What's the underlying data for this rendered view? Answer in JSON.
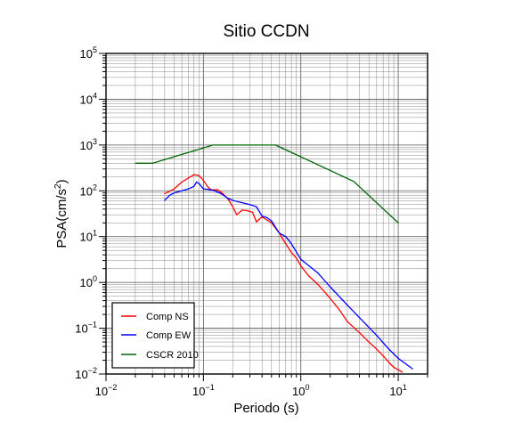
{
  "chart_data": {
    "type": "line",
    "title": "Sitio CCDN",
    "xlabel": "Periodo (s)",
    "ylabel": {
      "prefix": "PSA(cm/s",
      "sup": "2",
      "suffix": ")"
    },
    "x_scale": "log",
    "y_scale": "log",
    "xlim": [
      0.01,
      20
    ],
    "ylim": [
      0.01,
      100000
    ],
    "grid": true,
    "legend_placement": "bottom-left",
    "x_ticks": [
      {
        "value": 0.01,
        "base": "10",
        "exp": "−2"
      },
      {
        "value": 0.1,
        "base": "10",
        "exp": "−1"
      },
      {
        "value": 1,
        "base": "10",
        "exp": "0"
      },
      {
        "value": 10,
        "base": "10",
        "exp": "1"
      }
    ],
    "y_ticks": [
      {
        "value": 0.01,
        "base": "10",
        "exp": "−2"
      },
      {
        "value": 0.1,
        "base": "10",
        "exp": "−1"
      },
      {
        "value": 1,
        "base": "10",
        "exp": "0"
      },
      {
        "value": 10,
        "base": "10",
        "exp": "1"
      },
      {
        "value": 100,
        "base": "10",
        "exp": "2"
      },
      {
        "value": 1000,
        "base": "10",
        "exp": "3"
      },
      {
        "value": 10000,
        "base": "10",
        "exp": "4"
      },
      {
        "value": 100000,
        "base": "10",
        "exp": "5"
      }
    ],
    "series": [
      {
        "name": "Comp NS",
        "color": "#ff0000",
        "points": [
          [
            0.04,
            87
          ],
          [
            0.05,
            110
          ],
          [
            0.06,
            155
          ],
          [
            0.07,
            190
          ],
          [
            0.08,
            225
          ],
          [
            0.09,
            215
          ],
          [
            0.1,
            170
          ],
          [
            0.11,
            125
          ],
          [
            0.12,
            105
          ],
          [
            0.14,
            105
          ],
          [
            0.16,
            85
          ],
          [
            0.18,
            65
          ],
          [
            0.2,
            45
          ],
          [
            0.22,
            30
          ],
          [
            0.25,
            38
          ],
          [
            0.28,
            37
          ],
          [
            0.32,
            34
          ],
          [
            0.35,
            21
          ],
          [
            0.4,
            27
          ],
          [
            0.45,
            23
          ],
          [
            0.5,
            20
          ],
          [
            0.6,
            12
          ],
          [
            0.7,
            7
          ],
          [
            0.8,
            4.5
          ],
          [
            0.9,
            3.4
          ],
          [
            1,
            2.3
          ],
          [
            1.2,
            1.4
          ],
          [
            1.5,
            0.9
          ],
          [
            2,
            0.45
          ],
          [
            2.5,
            0.25
          ],
          [
            3,
            0.14
          ],
          [
            4,
            0.08
          ],
          [
            5,
            0.05
          ],
          [
            6,
            0.035
          ],
          [
            7,
            0.025
          ],
          [
            8,
            0.018
          ],
          [
            9,
            0.014
          ],
          [
            11,
            0.011
          ]
        ]
      },
      {
        "name": "Comp EW",
        "color": "#0000ff",
        "points": [
          [
            0.04,
            62
          ],
          [
            0.045,
            80
          ],
          [
            0.05,
            90
          ],
          [
            0.06,
            100
          ],
          [
            0.07,
            110
          ],
          [
            0.08,
            125
          ],
          [
            0.085,
            155
          ],
          [
            0.09,
            145
          ],
          [
            0.1,
            110
          ],
          [
            0.11,
            108
          ],
          [
            0.12,
            105
          ],
          [
            0.13,
            100
          ],
          [
            0.15,
            88
          ],
          [
            0.18,
            68
          ],
          [
            0.2,
            62
          ],
          [
            0.25,
            55
          ],
          [
            0.3,
            50
          ],
          [
            0.35,
            45
          ],
          [
            0.4,
            28
          ],
          [
            0.45,
            26
          ],
          [
            0.5,
            22
          ],
          [
            0.6,
            12
          ],
          [
            0.7,
            10
          ],
          [
            0.8,
            7
          ],
          [
            1,
            3.2
          ],
          [
            1.5,
            1.6
          ],
          [
            2,
            0.8
          ],
          [
            3,
            0.32
          ],
          [
            4,
            0.17
          ],
          [
            6,
            0.07
          ],
          [
            8,
            0.035
          ],
          [
            10,
            0.022
          ],
          [
            14,
            0.013
          ]
        ]
      },
      {
        "name": "CSCR 2010",
        "color": "#006400",
        "points": [
          [
            0.02,
            400
          ],
          [
            0.03,
            400
          ],
          [
            0.125,
            1000
          ],
          [
            0.55,
            1000
          ],
          [
            3.5,
            160
          ],
          [
            10,
            20
          ]
        ]
      }
    ]
  }
}
